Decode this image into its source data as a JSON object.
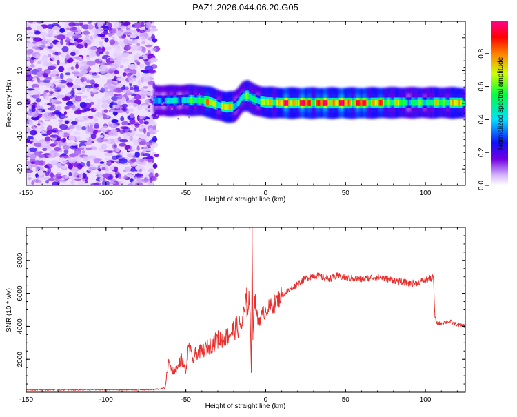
{
  "title": "PAZ1.2026.044.06.20.G05",
  "chart_data": [
    {
      "type": "heatmap",
      "xlabel": "Height of straight line (km)",
      "ylabel": "Frequency (Hz)",
      "xlim": [
        -150,
        125
      ],
      "ylim": [
        -25,
        25
      ],
      "x_ticks": [
        -150,
        -100,
        -50,
        0,
        50,
        100
      ],
      "y_ticks": [
        -20,
        -10,
        0,
        10,
        20
      ],
      "colorbar": {
        "label": "Normalized spectral amplitude",
        "range": [
          0,
          1
        ],
        "ticks": [
          "0.0",
          "0.2",
          "0.4",
          "0.6",
          "0.8"
        ]
      },
      "noise_region_x": [
        -150,
        -70
      ],
      "ridge": {
        "x": [
          -70,
          -60,
          -50,
          -44,
          -40,
          -35,
          -30,
          -25,
          -20,
          -18,
          -15,
          -12,
          -8,
          -4,
          0,
          5,
          10,
          20,
          40,
          60,
          80,
          90,
          100,
          110,
          125
        ],
        "frequency": [
          0.8,
          0.8,
          1.0,
          0.9,
          0.8,
          0.3,
          -0.5,
          -1.2,
          -1.0,
          0.0,
          2.0,
          2.4,
          1.2,
          0.6,
          0.3,
          0.2,
          0.1,
          0.1,
          0.1,
          0.1,
          0.2,
          0.2,
          0.2,
          0.2,
          0.1
        ],
        "amplitude": [
          0.4,
          0.45,
          0.5,
          0.6,
          0.8,
          0.75,
          0.7,
          0.8,
          0.6,
          0.5,
          0.6,
          0.55,
          0.6,
          0.65,
          0.7,
          0.8,
          0.9,
          0.95,
          0.95,
          0.95,
          0.7,
          0.55,
          0.6,
          0.7,
          0.8
        ]
      }
    },
    {
      "type": "line",
      "xlabel": "Height of straight line (km)",
      "ylabel": "SNR (10 * v/v)",
      "xlim": [
        -150,
        125
      ],
      "ylim": [
        0,
        10000
      ],
      "x_ticks": [
        -150,
        -100,
        -50,
        0,
        50,
        100
      ],
      "y_ticks": [
        2000,
        4000,
        6000,
        8000
      ],
      "series": [
        {
          "color": "#e8302e",
          "x": [
            -150,
            -130,
            -110,
            -90,
            -70,
            -63,
            -61,
            -58,
            -55,
            -53,
            -50,
            -48,
            -46,
            -44,
            -40,
            -35,
            -30,
            -25,
            -20,
            -15,
            -12,
            -10,
            -9,
            -8.5,
            -8,
            -7,
            -5,
            0,
            5,
            10,
            15,
            20,
            25,
            30,
            35,
            40,
            45,
            50,
            55,
            60,
            65,
            70,
            75,
            80,
            85,
            90,
            95,
            100,
            105,
            106,
            107,
            110,
            115,
            120,
            125
          ],
          "y": [
            150,
            150,
            150,
            150,
            160,
            250,
            1800,
            1300,
            1500,
            2100,
            1200,
            3000,
            1900,
            2300,
            2500,
            2800,
            3200,
            3300,
            3800,
            4100,
            5400,
            5600,
            1200,
            10000,
            3500,
            5800,
            4300,
            5000,
            5300,
            5900,
            6200,
            6600,
            6900,
            7100,
            7000,
            6900,
            7050,
            6950,
            6900,
            6850,
            6950,
            7000,
            6900,
            6800,
            6700,
            6600,
            6650,
            6800,
            6950,
            4500,
            4200,
            4200,
            4300,
            4100,
            4000
          ]
        }
      ]
    }
  ]
}
